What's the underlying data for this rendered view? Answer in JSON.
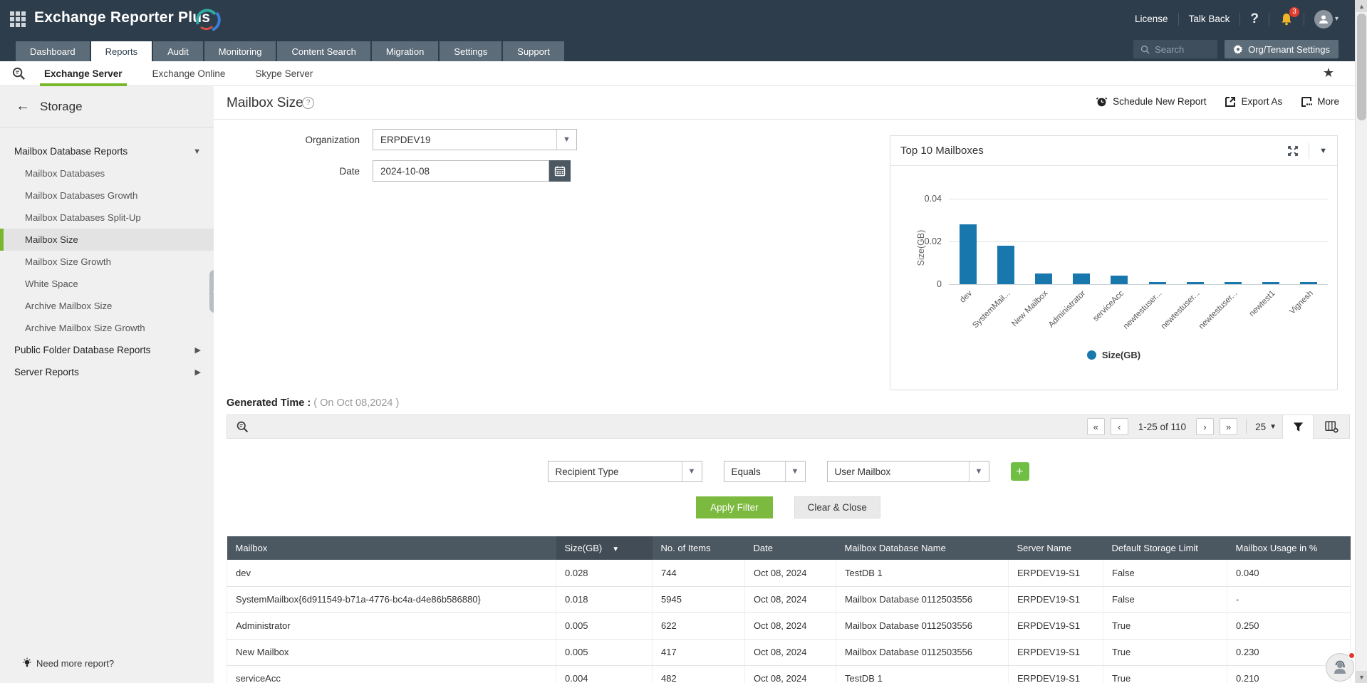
{
  "colors": {
    "header_bg": "#2e3d4c",
    "accent_green": "#76b82a",
    "bar_blue": "#1878ad",
    "table_header_bg": "#4b5761",
    "bell_yellow": "#f0b429",
    "badge_red": "#e23b2e"
  },
  "header": {
    "app_title": "Exchange Reporter Plus",
    "license": "License",
    "talk_back": "Talk Back",
    "help": "?",
    "notification_count": "3",
    "nav_tabs": [
      {
        "label": "Dashboard"
      },
      {
        "label": "Reports",
        "active": true
      },
      {
        "label": "Audit"
      },
      {
        "label": "Monitoring"
      },
      {
        "label": "Content Search"
      },
      {
        "label": "Migration"
      },
      {
        "label": "Settings"
      },
      {
        "label": "Support"
      }
    ],
    "search_placeholder": "Search",
    "org_settings": "Org/Tenant Settings"
  },
  "subnav": {
    "tabs": [
      {
        "label": "Exchange Server",
        "active": true
      },
      {
        "label": "Exchange Online"
      },
      {
        "label": "Skype Server"
      }
    ]
  },
  "sidebar": {
    "back_label": "Storage",
    "group_label": "Mailbox Database Reports",
    "items": [
      {
        "label": "Mailbox Databases"
      },
      {
        "label": "Mailbox Databases Growth"
      },
      {
        "label": "Mailbox Databases Split-Up"
      },
      {
        "label": "Mailbox Size",
        "active": true
      },
      {
        "label": "Mailbox Size Growth"
      },
      {
        "label": "White Space"
      },
      {
        "label": "Archive Mailbox Size"
      },
      {
        "label": "Archive Mailbox Size Growth"
      }
    ],
    "collapsed_groups": [
      {
        "label": "Public Folder Database Reports"
      },
      {
        "label": "Server Reports"
      }
    ],
    "footer_link": "Need more report?"
  },
  "report": {
    "title": "Mailbox Size",
    "actions": {
      "schedule": "Schedule New Report",
      "export": "Export As",
      "more": "More"
    },
    "form": {
      "organization_label": "Organization",
      "organization_value": "ERPDEV19",
      "date_label": "Date",
      "date_value": "2024-10-08"
    },
    "generated_label": "Generated Time :",
    "generated_value": "( On Oct 08,2024 )"
  },
  "chart_data": {
    "type": "bar",
    "title": "Top 10 Mailboxes",
    "categories": [
      "dev",
      "SystemMail...",
      "New Mailbox",
      "Administrator",
      "serviceAcc",
      "newtestuser...",
      "newtestuser...",
      "newtestuser...",
      "newtest1",
      "Vignesh"
    ],
    "values": [
      0.028,
      0.018,
      0.005,
      0.005,
      0.004,
      0.001,
      0.001,
      0.001,
      0.001,
      0.001
    ],
    "ylabel": "Size(GB)",
    "xlabel": "",
    "yticks": [
      "0",
      "0.02",
      "0.04"
    ],
    "ylim": [
      0,
      0.04
    ],
    "grid": true,
    "legend": [
      "Size(GB)"
    ],
    "legend_position": "bottom",
    "bar_color": "#1878ad"
  },
  "toolbar": {
    "range": "1-25 of 110",
    "page_size": "25"
  },
  "filter": {
    "field": "Recipient Type",
    "operator": "Equals",
    "value": "User Mailbox",
    "apply": "Apply Filter",
    "clear": "Clear & Close"
  },
  "table": {
    "columns": [
      "Mailbox",
      "Size(GB)",
      "No. of Items",
      "Date",
      "Mailbox Database Name",
      "Server Name",
      "Default Storage Limit",
      "Mailbox Usage in %"
    ],
    "sorted_column_index": 1,
    "sort_direction": "desc",
    "rows": [
      [
        "dev",
        "0.028",
        "744",
        "Oct 08, 2024",
        "TestDB 1",
        "ERPDEV19-S1",
        "False",
        "0.040"
      ],
      [
        "SystemMailbox{6d911549-b71a-4776-bc4a-d4e86b586880}",
        "0.018",
        "5945",
        "Oct 08, 2024",
        "Mailbox Database 0112503556",
        "ERPDEV19-S1",
        "False",
        "-"
      ],
      [
        "Administrator",
        "0.005",
        "622",
        "Oct 08, 2024",
        "Mailbox Database 0112503556",
        "ERPDEV19-S1",
        "True",
        "0.250"
      ],
      [
        "New Mailbox",
        "0.005",
        "417",
        "Oct 08, 2024",
        "Mailbox Database 0112503556",
        "ERPDEV19-S1",
        "True",
        "0.230"
      ],
      [
        "serviceAcc",
        "0.004",
        "482",
        "Oct 08, 2024",
        "TestDB 1",
        "ERPDEV19-S1",
        "True",
        "0.210"
      ]
    ]
  }
}
